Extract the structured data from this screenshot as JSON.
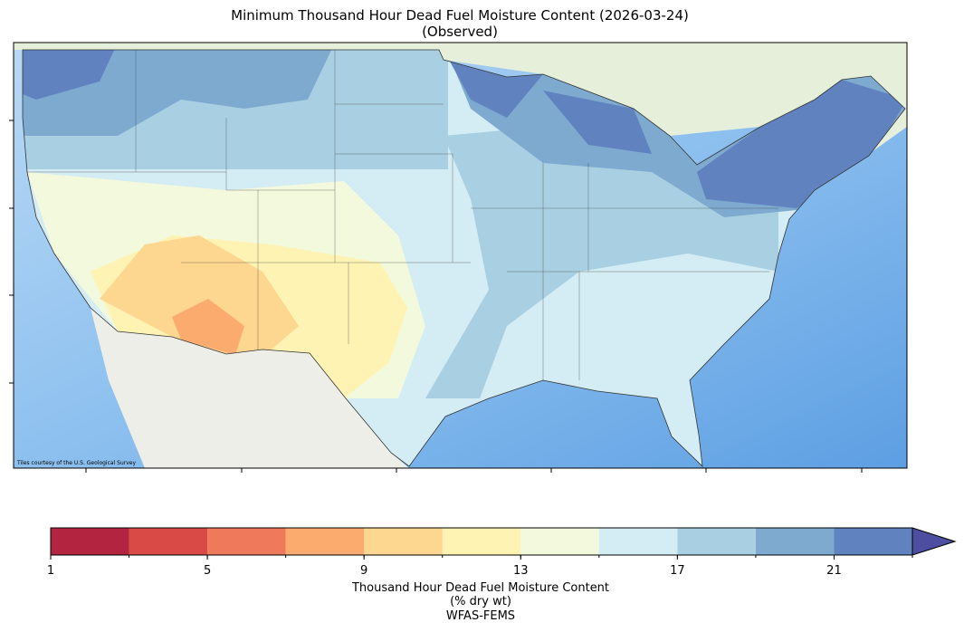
{
  "title": "Minimum Thousand Hour Dead Fuel Moisture Content (2026-03-24)",
  "subtitle": "(Observed)",
  "map": {
    "attribution": "Tiles courtesy of the U.S. Geological Survey"
  },
  "colorbar": {
    "bounds": [
      1,
      3,
      5,
      7,
      9,
      11,
      13,
      15,
      17,
      19,
      21,
      23
    ],
    "colors": [
      "#b2243f",
      "#d94a47",
      "#ef7a5b",
      "#fbab6e",
      "#fdd690",
      "#fef3b3",
      "#f2f9dd",
      "#d4ecf3",
      "#a9d0e2",
      "#7eaad0",
      "#6083bf"
    ],
    "extend": "max",
    "extend_color": "#4d4ea0",
    "ticks": [
      1,
      5,
      9,
      13,
      17,
      21
    ],
    "label": [
      "Thousand Hour Dead Fuel Moisture Content",
      "(% dry wt)",
      "WFAS-FEMS"
    ]
  }
}
